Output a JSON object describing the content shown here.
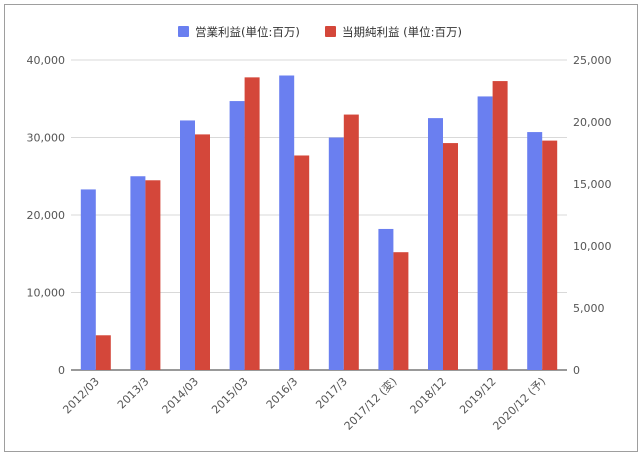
{
  "chart_data": {
    "type": "bar",
    "categories": [
      "2012/03",
      "2013/3",
      "2014/03",
      "2015/03",
      "2016/3",
      "2017/3",
      "2017/12 (変)",
      "2018/12",
      "2019/12",
      "2020/12 (予)"
    ],
    "series": [
      {
        "name": "営業利益(単位:百万)",
        "axis": "left",
        "color": "#6a7ff0",
        "values": [
          23300,
          25000,
          32200,
          34700,
          38000,
          30000,
          18200,
          32500,
          35300,
          30700
        ]
      },
      {
        "name": "当期純利益 (単位:百万)",
        "axis": "right",
        "color": "#d4473a",
        "values": [
          2800,
          15300,
          19000,
          23600,
          17300,
          20600,
          9500,
          18300,
          23300,
          18500
        ]
      }
    ],
    "y_left": {
      "min": 0,
      "max": 40000,
      "ticks": [
        "0",
        "10,000",
        "20,000",
        "30,000",
        "40,000"
      ]
    },
    "y_right": {
      "min": 0,
      "max": 25000,
      "ticks": [
        "0",
        "5,000",
        "10,000",
        "15,000",
        "20,000",
        "25,000"
      ]
    },
    "grid": true,
    "legend_position": "top-center"
  }
}
